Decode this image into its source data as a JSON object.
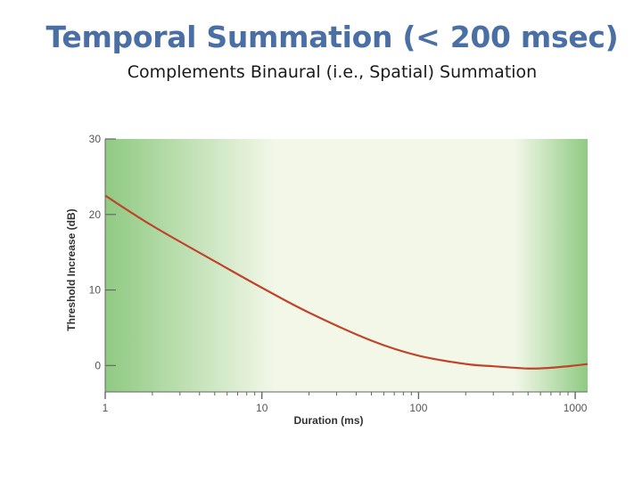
{
  "slide": {
    "title": "Temporal Summation (< 200 msec)",
    "subtitle": "Complements Binaural (i.e., Spatial) Summation"
  },
  "chart_data": {
    "type": "line",
    "xlabel": "Duration (ms)",
    "ylabel": "Threshold Increase (dB)",
    "xscale": "log",
    "xlim": [
      1,
      1200
    ],
    "ylim": [
      -3.5,
      30
    ],
    "x_ticks": [
      1,
      10,
      100,
      1000
    ],
    "x_tick_labels": [
      "1",
      "10",
      "100",
      "1000"
    ],
    "y_ticks": [
      0,
      10,
      20,
      30
    ],
    "y_tick_labels": [
      "0",
      "10",
      "20",
      "30"
    ],
    "grid": false,
    "legend": "none",
    "colors": {
      "line": "#c0442a",
      "band_dark": "#8fca82",
      "band_light": "#f2f7e8",
      "axis": "#666666"
    },
    "series": [
      {
        "x": [
          1,
          2,
          5,
          10,
          20,
          50,
          100,
          200,
          300,
          500,
          700,
          1000,
          1200
        ],
        "y": [
          22.5,
          18.5,
          13.8,
          10.3,
          7.0,
          3.3,
          1.3,
          0.2,
          -0.1,
          -0.4,
          -0.3,
          0,
          0.2
        ]
      }
    ]
  }
}
